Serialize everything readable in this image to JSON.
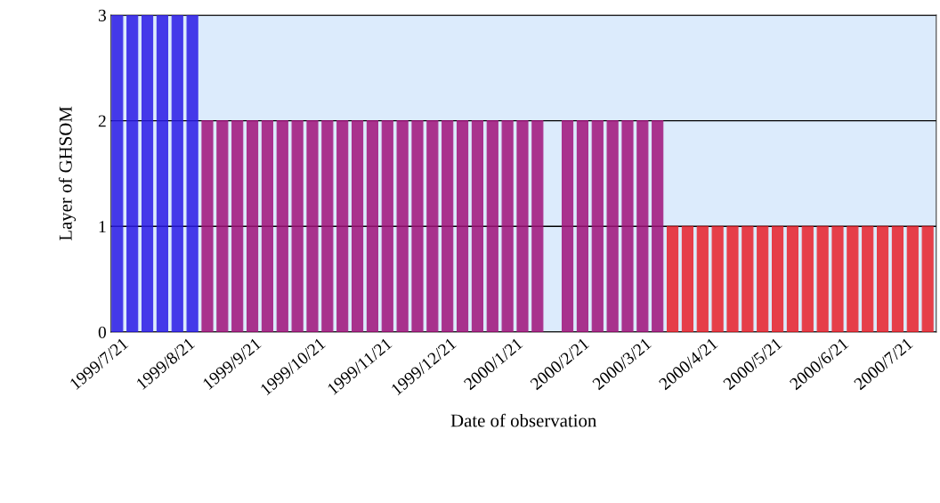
{
  "chart_data": {
    "type": "bar",
    "xlabel": "Date of observation",
    "ylabel": "Layer of GHSOM",
    "x": [
      "1999-07-19",
      "1999-07-26",
      "1999-08-02",
      "1999-08-09",
      "1999-08-16",
      "1999-08-23",
      "1999-08-30",
      "1999-09-06",
      "1999-09-13",
      "1999-09-20",
      "1999-09-27",
      "1999-10-04",
      "1999-10-11",
      "1999-10-18",
      "1999-10-25",
      "1999-11-01",
      "1999-11-08",
      "1999-11-15",
      "1999-11-22",
      "1999-11-29",
      "1999-12-06",
      "1999-12-13",
      "1999-12-20",
      "1999-12-27",
      "2000-01-03",
      "2000-01-10",
      "2000-01-17",
      "2000-01-24",
      "2000-01-31",
      "2000-02-07",
      "2000-02-14",
      "2000-02-21",
      "2000-02-28",
      "2000-03-06",
      "2000-03-13",
      "2000-03-20",
      "2000-03-27",
      "2000-04-03",
      "2000-04-10",
      "2000-04-17",
      "2000-04-24",
      "2000-05-01",
      "2000-05-08",
      "2000-05-15",
      "2000-05-22",
      "2000-05-29",
      "2000-06-05",
      "2000-06-12",
      "2000-06-19",
      "2000-06-26",
      "2000-07-03",
      "2000-07-10",
      "2000-07-17",
      "2000-07-24",
      "2000-07-31"
    ],
    "values": [
      3,
      3,
      3,
      3,
      3,
      3,
      2,
      2,
      2,
      2,
      2,
      2,
      2,
      2,
      2,
      2,
      2,
      2,
      2,
      2,
      2,
      2,
      2,
      2,
      2,
      2,
      2,
      2,
      2,
      null,
      2,
      2,
      2,
      2,
      2,
      2,
      2,
      1,
      1,
      1,
      1,
      1,
      1,
      1,
      1,
      1,
      1,
      1,
      1,
      1,
      1,
      1,
      1,
      1,
      1
    ],
    "colors": [
      "#2a1ae6",
      "#2a1ae6",
      "#2a1ae6",
      "#2a1ae6",
      "#2a1ae6",
      "#2a1ae6",
      "#a0127a",
      "#a0127a",
      "#a0127a",
      "#a0127a",
      "#a0127a",
      "#a0127a",
      "#a0127a",
      "#a0127a",
      "#a0127a",
      "#a0127a",
      "#a0127a",
      "#a0127a",
      "#a0127a",
      "#a0127a",
      "#a0127a",
      "#a0127a",
      "#a0127a",
      "#a0127a",
      "#a0127a",
      "#a0127a",
      "#a0127a",
      "#a0127a",
      "#a0127a",
      "#a0127a",
      "#a0127a",
      "#a0127a",
      "#a0127a",
      "#a0127a",
      "#a0127a",
      "#a0127a",
      "#a0127a",
      "#e8202a",
      "#e8202a",
      "#e8202a",
      "#e8202a",
      "#e8202a",
      "#e8202a",
      "#e8202a",
      "#e8202a",
      "#e8202a",
      "#e8202a",
      "#e8202a",
      "#e8202a",
      "#e8202a",
      "#e8202a",
      "#e8202a",
      "#e8202a",
      "#e8202a",
      "#e8202a"
    ],
    "xlim": [
      "1999-07-16",
      "2000-08-04"
    ],
    "xticks": [
      {
        "value": "1999-07-21",
        "label": "1999/7/21"
      },
      {
        "value": "1999-08-21",
        "label": "1999/8/21"
      },
      {
        "value": "1999-09-21",
        "label": "1999/9/21"
      },
      {
        "value": "1999-10-21",
        "label": "1999/10/21"
      },
      {
        "value": "1999-11-21",
        "label": "1999/11/21"
      },
      {
        "value": "1999-12-21",
        "label": "1999/12/21"
      },
      {
        "value": "2000-01-21",
        "label": "2000/1/21"
      },
      {
        "value": "2000-02-21",
        "label": "2000/2/21"
      },
      {
        "value": "2000-03-21",
        "label": "2000/3/21"
      },
      {
        "value": "2000-04-21",
        "label": "2000/4/21"
      },
      {
        "value": "2000-05-21",
        "label": "2000/5/21"
      },
      {
        "value": "2000-06-21",
        "label": "2000/6/21"
      },
      {
        "value": "2000-07-21",
        "label": "2000/7/21"
      }
    ],
    "ylim": [
      0,
      3
    ],
    "yticks": [
      0,
      1,
      2,
      3
    ],
    "grid": "y"
  }
}
